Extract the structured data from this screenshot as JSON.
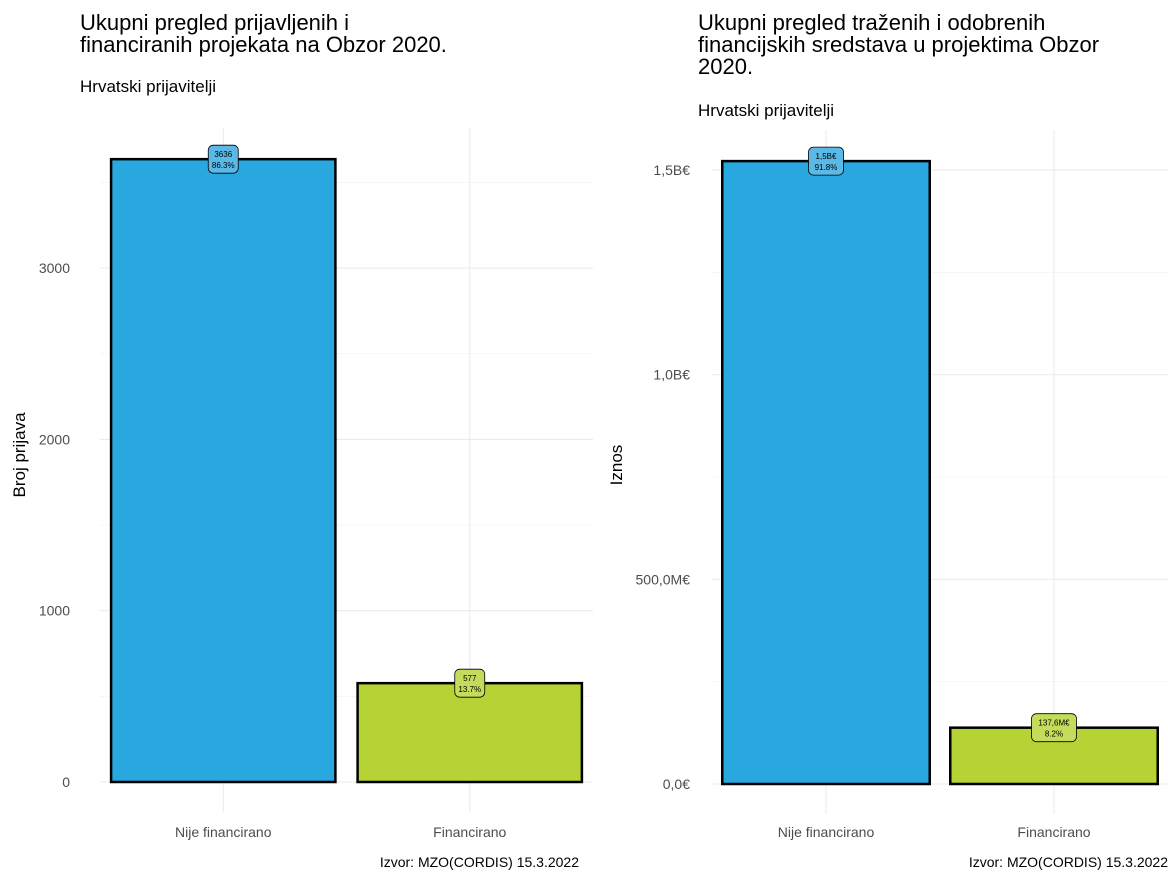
{
  "colors": {
    "blue": "#29a8e0",
    "green": "#b5d334",
    "label_blue": "#5ab9e6",
    "label_green": "#c3dc5c"
  },
  "chart_data": [
    {
      "type": "bar",
      "title": "Ukupni pregled prijavljenih i financiranih projekata na Obzor 2020.",
      "title_lines": [
        "Ukupni pregled prijavljenih i",
        "financiranih projekata na Obzor 2020."
      ],
      "subtitle": "Hrvatski prijavitelji",
      "xlabel": "",
      "ylabel": "Broj prijava",
      "categories": [
        "Nije financirano",
        "Financirano"
      ],
      "values": [
        3636,
        577
      ],
      "data_labels": [
        [
          "3636",
          "86.3%"
        ],
        [
          "577",
          "13.7%"
        ]
      ],
      "yticks": [
        0,
        1000,
        2000,
        3000
      ],
      "ytick_labels": [
        "0",
        "1000",
        "2000",
        "3000"
      ],
      "ylim": [
        0,
        3818
      ],
      "grid": true,
      "caption": "Izvor: MZO(CORDIS) 15.3.2022"
    },
    {
      "type": "bar",
      "title": "Ukupni pregled traženih i odobrenih financijskih sredstava u projektima Obzor 2020.",
      "title_lines": [
        "Ukupni pregled traženih i odobrenih",
        "financijskih sredstava u projektima Obzor",
        "2020."
      ],
      "subtitle": "Hrvatski prijavitelji",
      "xlabel": "",
      "ylabel": "Iznos",
      "categories": [
        "Nije financirano",
        "Financirano"
      ],
      "values": [
        1522000000,
        137600000
      ],
      "data_labels": [
        [
          "1,5B€",
          "91.8%"
        ],
        [
          "137,6M€",
          "8.2%"
        ]
      ],
      "yticks": [
        0,
        500000000,
        1000000000,
        1500000000
      ],
      "ytick_labels": [
        "0,0€",
        "500,0M€",
        "1,0B€",
        "1,5B€"
      ],
      "ylim": [
        0,
        1598000000
      ],
      "grid": true,
      "caption": "Izvor: MZO(CORDIS) 15.3.2022"
    }
  ]
}
